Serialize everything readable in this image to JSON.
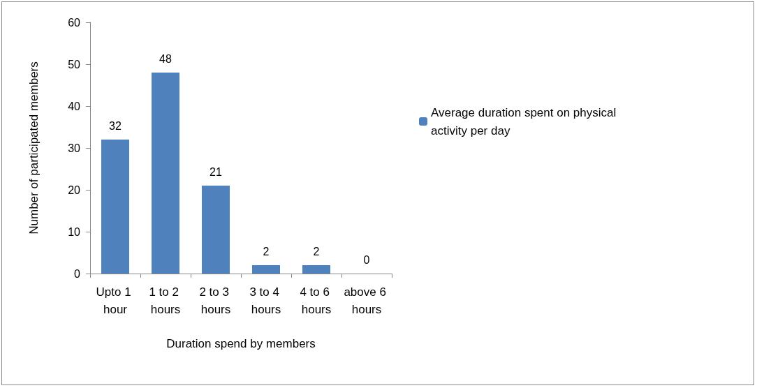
{
  "chart_data": {
    "type": "bar",
    "xlabel": "Duration spend by members",
    "ylabel": "Number of participated members",
    "categories": [
      "Upto 1 hour",
      "1 to 2 hours",
      "2 to 3 hours",
      "3 to 4 hours",
      "4 to 6 hours",
      "above 6 hours"
    ],
    "series": [
      {
        "name": "Average duration spent on physical activity per day",
        "color": "#4f81bd",
        "values": [
          32,
          48,
          21,
          2,
          2,
          0
        ]
      }
    ],
    "ylim": [
      0,
      60
    ],
    "yticks": [
      0,
      10,
      20,
      30,
      40,
      50,
      60
    ],
    "grid": false,
    "legend": "right",
    "data_labels": true
  }
}
